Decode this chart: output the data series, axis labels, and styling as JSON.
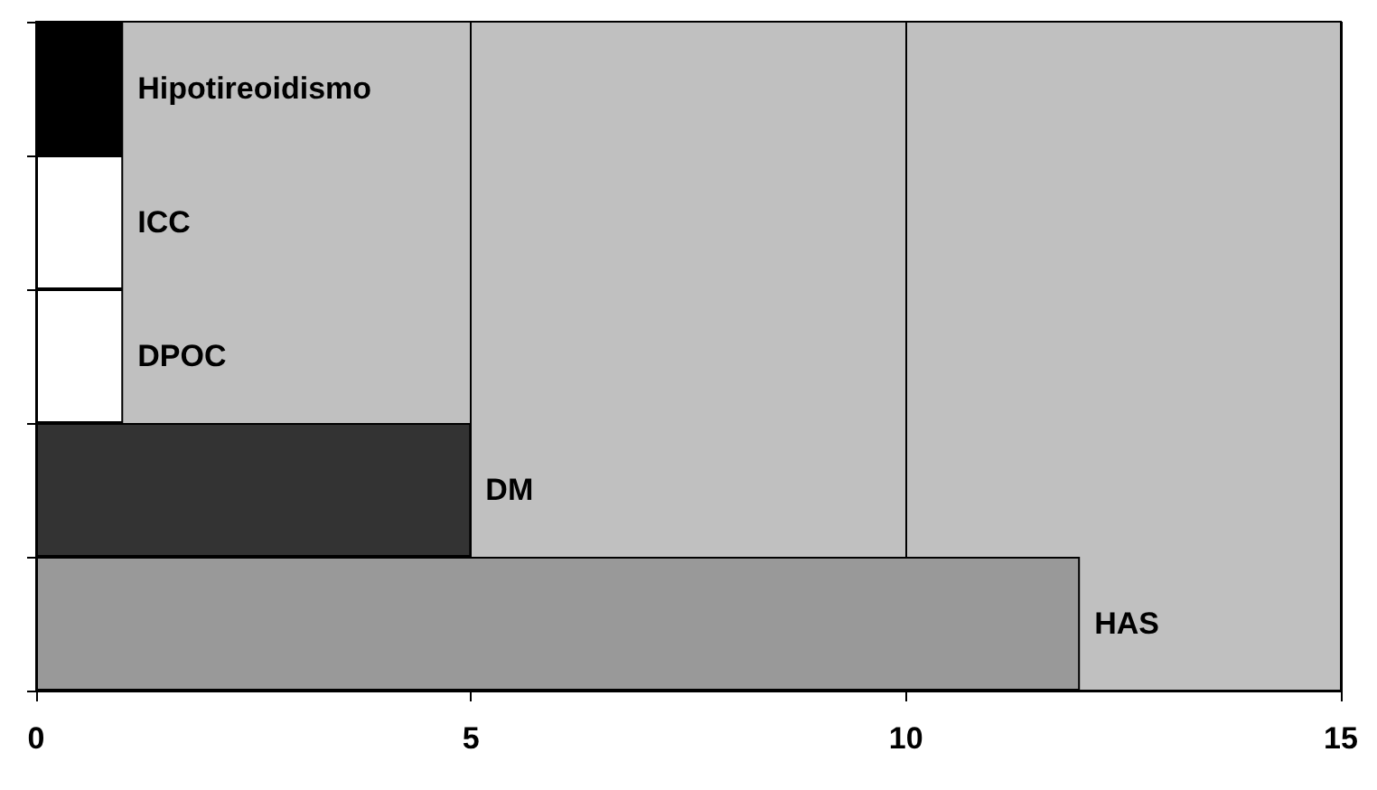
{
  "chart_data": {
    "type": "bar",
    "orientation": "horizontal",
    "categories": [
      "Hipotireoidismo",
      "ICC",
      "DPOC",
      "DM",
      "HAS"
    ],
    "values": [
      1,
      1,
      1,
      5,
      12
    ],
    "colors": [
      "#000000",
      "#ffffff",
      "#ffffff",
      "#333333",
      "#999999"
    ],
    "xlim": [
      0,
      15
    ],
    "xticks": [
      0,
      5,
      10,
      15
    ],
    "grid": "x",
    "tick_labels": "x"
  }
}
